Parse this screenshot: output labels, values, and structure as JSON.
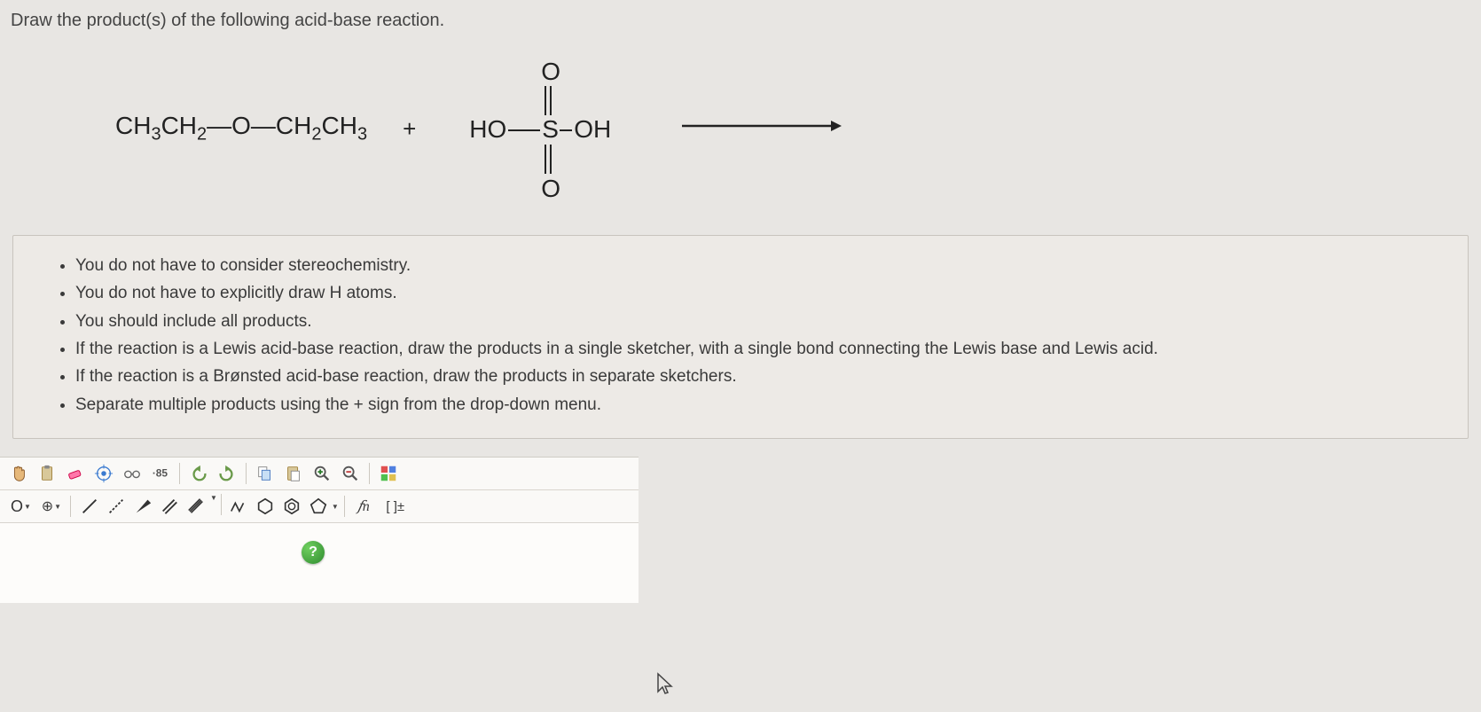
{
  "prompt": "Draw the product(s) of the following acid-base reaction.",
  "reaction": {
    "reactant1_html": "CH<sub>3</sub>CH<sub>2</sub>—O—CH<sub>2</sub>CH<sub>3</sub>",
    "plus": "+",
    "reactant2": {
      "center": "S",
      "left": "HO",
      "right": "OH",
      "top": "O",
      "bottom": "O"
    },
    "arrow_color": "#222"
  },
  "instructions": [
    "You do not have to consider stereochemistry.",
    "You do not have to explicitly draw H atoms.",
    "You should include all products.",
    "If the reaction is a Lewis acid-base reaction, draw the products in a single sketcher, with a single bond connecting the Lewis base and Lewis acid.",
    "If the reaction is a Brønsted acid-base reaction, draw the products in separate sketchers.",
    "Separate multiple products using the + sign from the drop-down menu."
  ],
  "toolbar": {
    "row1": [
      {
        "name": "move-tool",
        "glyph": "hand"
      },
      {
        "name": "clipboard-tool",
        "glyph": "clipboard"
      },
      {
        "name": "eraser-tool",
        "glyph": "eraser"
      },
      {
        "name": "center-tool",
        "glyph": "target"
      },
      {
        "name": "settings-tool",
        "glyph": "glasses"
      },
      {
        "name": "clean-tool",
        "glyph": "broom"
      },
      {
        "name": "undo-tool",
        "glyph": "undo"
      },
      {
        "name": "redo-tool",
        "glyph": "redo"
      },
      {
        "name": "copy-tool",
        "glyph": "copy"
      },
      {
        "name": "paste-tool",
        "glyph": "paste"
      },
      {
        "name": "zoom-in-tool",
        "glyph": "zoomin"
      },
      {
        "name": "zoom-out-tool",
        "glyph": "zoomout"
      },
      {
        "name": "color-tool",
        "glyph": "palette"
      }
    ],
    "row2_atom_label": "O",
    "row2_charge_label": "⊕",
    "row2": [
      {
        "name": "single-bond-tool",
        "glyph": "sbond"
      },
      {
        "name": "dashed-bond-tool",
        "glyph": "dashbond"
      },
      {
        "name": "wedge-bond-tool",
        "glyph": "wedge"
      },
      {
        "name": "double-bond-tool",
        "glyph": "dbond"
      },
      {
        "name": "triple-bond-tool",
        "glyph": "tbond"
      },
      {
        "name": "chain-tool",
        "glyph": "chain"
      },
      {
        "name": "hexagon-tool",
        "glyph": "hexagon"
      },
      {
        "name": "benzene-tool",
        "glyph": "benzene"
      },
      {
        "name": "pentagon-tool",
        "glyph": "pentagon"
      }
    ],
    "curve_label": "𝑓n",
    "bracket_label": "[ ]±",
    "help_label": "?"
  },
  "colors": {
    "bg": "#e8e6e3",
    "box_bg": "#edeae6",
    "box_border": "#c8c4be",
    "text": "#3a3a3a"
  }
}
